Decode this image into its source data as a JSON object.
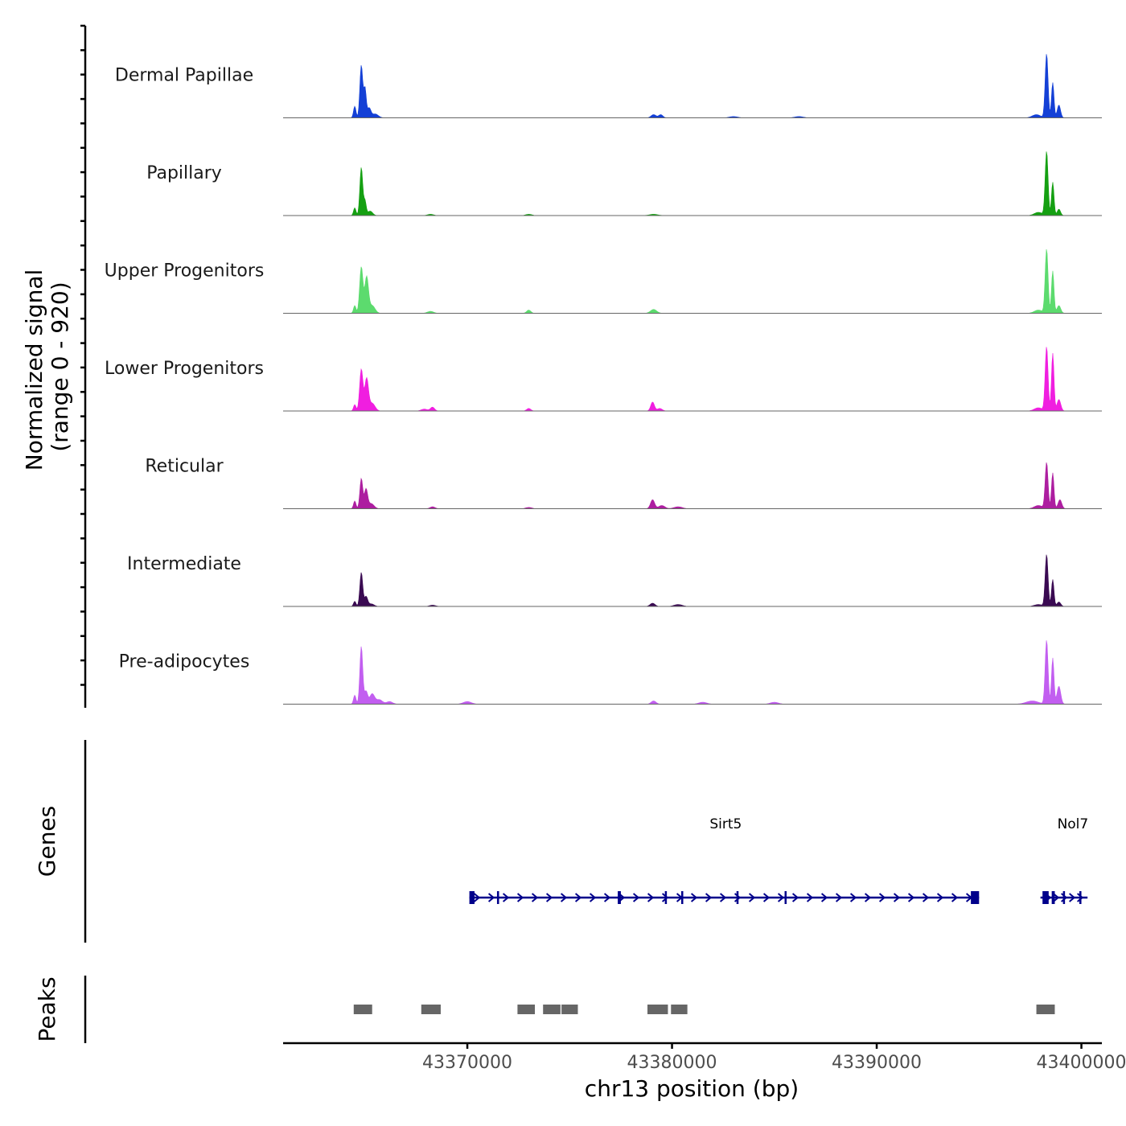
{
  "chart_data": {
    "type": "area",
    "title": "",
    "chromosome": "chr13",
    "xlabel": "chr13 position (bp)",
    "ylabel": [
      "Normalized signal",
      "(range 0 - 920)"
    ],
    "signal_range": [
      0,
      920
    ],
    "xlim": [
      43361000,
      43401000
    ],
    "x_ticks": [
      43370000,
      43380000,
      43390000,
      43400000
    ],
    "x_tick_labels": [
      "43370000",
      "43380000",
      "43390000",
      "43400000"
    ],
    "tracks": [
      {
        "name": "Dermal Papillae",
        "color": "#1440d6",
        "peaks": [
          {
            "pos": 43364500,
            "height": 0.18,
            "width": 60
          },
          {
            "pos": 43364820,
            "height": 0.82,
            "width": 70
          },
          {
            "pos": 43365000,
            "height": 0.45,
            "width": 60
          },
          {
            "pos": 43365200,
            "height": 0.15,
            "width": 90
          },
          {
            "pos": 43365500,
            "height": 0.06,
            "width": 150
          },
          {
            "pos": 43379100,
            "height": 0.05,
            "width": 120
          },
          {
            "pos": 43379450,
            "height": 0.05,
            "width": 100
          },
          {
            "pos": 43383000,
            "height": 0.02,
            "width": 200
          },
          {
            "pos": 43386200,
            "height": 0.02,
            "width": 200
          },
          {
            "pos": 43398300,
            "height": 1.0,
            "width": 70
          },
          {
            "pos": 43398600,
            "height": 0.55,
            "width": 60
          },
          {
            "pos": 43398900,
            "height": 0.2,
            "width": 80
          },
          {
            "pos": 43397800,
            "height": 0.05,
            "width": 200
          }
        ]
      },
      {
        "name": "Papillary",
        "color": "#15a012",
        "peaks": [
          {
            "pos": 43364500,
            "height": 0.12,
            "width": 60
          },
          {
            "pos": 43364820,
            "height": 0.75,
            "width": 70
          },
          {
            "pos": 43365000,
            "height": 0.22,
            "width": 60
          },
          {
            "pos": 43365250,
            "height": 0.07,
            "width": 120
          },
          {
            "pos": 43368200,
            "height": 0.02,
            "width": 150
          },
          {
            "pos": 43373000,
            "height": 0.02,
            "width": 150
          },
          {
            "pos": 43379100,
            "height": 0.02,
            "width": 200
          },
          {
            "pos": 43398300,
            "height": 1.0,
            "width": 70
          },
          {
            "pos": 43398600,
            "height": 0.52,
            "width": 60
          },
          {
            "pos": 43398900,
            "height": 0.1,
            "width": 80
          },
          {
            "pos": 43397900,
            "height": 0.05,
            "width": 200
          }
        ]
      },
      {
        "name": "Upper Progenitors",
        "color": "#5cdb6e",
        "peaks": [
          {
            "pos": 43364500,
            "height": 0.12,
            "width": 60
          },
          {
            "pos": 43364820,
            "height": 0.72,
            "width": 80
          },
          {
            "pos": 43365080,
            "height": 0.56,
            "width": 90
          },
          {
            "pos": 43365350,
            "height": 0.12,
            "width": 140
          },
          {
            "pos": 43368200,
            "height": 0.03,
            "width": 150
          },
          {
            "pos": 43373000,
            "height": 0.05,
            "width": 100
          },
          {
            "pos": 43379100,
            "height": 0.06,
            "width": 150
          },
          {
            "pos": 43398300,
            "height": 1.0,
            "width": 70
          },
          {
            "pos": 43398600,
            "height": 0.66,
            "width": 60
          },
          {
            "pos": 43398900,
            "height": 0.12,
            "width": 90
          },
          {
            "pos": 43397900,
            "height": 0.05,
            "width": 200
          }
        ]
      },
      {
        "name": "Lower Progenitors",
        "color": "#f01ee0",
        "peaks": [
          {
            "pos": 43364500,
            "height": 0.1,
            "width": 60
          },
          {
            "pos": 43364820,
            "height": 0.65,
            "width": 80
          },
          {
            "pos": 43365080,
            "height": 0.5,
            "width": 90
          },
          {
            "pos": 43365350,
            "height": 0.12,
            "width": 140
          },
          {
            "pos": 43367900,
            "height": 0.03,
            "width": 150
          },
          {
            "pos": 43368300,
            "height": 0.06,
            "width": 100
          },
          {
            "pos": 43373000,
            "height": 0.04,
            "width": 100
          },
          {
            "pos": 43379050,
            "height": 0.14,
            "width": 90
          },
          {
            "pos": 43379400,
            "height": 0.04,
            "width": 120
          },
          {
            "pos": 43398300,
            "height": 1.0,
            "width": 70
          },
          {
            "pos": 43398600,
            "height": 0.9,
            "width": 60
          },
          {
            "pos": 43398900,
            "height": 0.18,
            "width": 90
          },
          {
            "pos": 43397900,
            "height": 0.05,
            "width": 200
          }
        ]
      },
      {
        "name": "Reticular",
        "color": "#ad1ea0",
        "peaks": [
          {
            "pos": 43364500,
            "height": 0.12,
            "width": 60
          },
          {
            "pos": 43364820,
            "height": 0.47,
            "width": 70
          },
          {
            "pos": 43365050,
            "height": 0.3,
            "width": 80
          },
          {
            "pos": 43365300,
            "height": 0.08,
            "width": 140
          },
          {
            "pos": 43368300,
            "height": 0.03,
            "width": 120
          },
          {
            "pos": 43373000,
            "height": 0.02,
            "width": 150
          },
          {
            "pos": 43379050,
            "height": 0.14,
            "width": 100
          },
          {
            "pos": 43379500,
            "height": 0.05,
            "width": 150
          },
          {
            "pos": 43380300,
            "height": 0.03,
            "width": 200
          },
          {
            "pos": 43398300,
            "height": 0.72,
            "width": 70
          },
          {
            "pos": 43398600,
            "height": 0.56,
            "width": 60
          },
          {
            "pos": 43398950,
            "height": 0.14,
            "width": 90
          },
          {
            "pos": 43397900,
            "height": 0.05,
            "width": 200
          }
        ]
      },
      {
        "name": "Intermediate",
        "color": "#3a0a52",
        "peaks": [
          {
            "pos": 43364500,
            "height": 0.08,
            "width": 60
          },
          {
            "pos": 43364820,
            "height": 0.53,
            "width": 70
          },
          {
            "pos": 43365050,
            "height": 0.15,
            "width": 80
          },
          {
            "pos": 43365300,
            "height": 0.04,
            "width": 140
          },
          {
            "pos": 43368300,
            "height": 0.02,
            "width": 150
          },
          {
            "pos": 43379050,
            "height": 0.05,
            "width": 120
          },
          {
            "pos": 43380300,
            "height": 0.03,
            "width": 200
          },
          {
            "pos": 43398300,
            "height": 0.81,
            "width": 70
          },
          {
            "pos": 43398600,
            "height": 0.42,
            "width": 60
          },
          {
            "pos": 43398900,
            "height": 0.07,
            "width": 90
          },
          {
            "pos": 43397900,
            "height": 0.03,
            "width": 200
          }
        ]
      },
      {
        "name": "Pre-adipocytes",
        "color": "#c25ef0",
        "peaks": [
          {
            "pos": 43364500,
            "height": 0.14,
            "width": 60
          },
          {
            "pos": 43364820,
            "height": 0.9,
            "width": 70
          },
          {
            "pos": 43365050,
            "height": 0.2,
            "width": 80
          },
          {
            "pos": 43365350,
            "height": 0.16,
            "width": 120
          },
          {
            "pos": 43365700,
            "height": 0.07,
            "width": 150
          },
          {
            "pos": 43366200,
            "height": 0.04,
            "width": 150
          },
          {
            "pos": 43370000,
            "height": 0.04,
            "width": 200
          },
          {
            "pos": 43379100,
            "height": 0.05,
            "width": 120
          },
          {
            "pos": 43381500,
            "height": 0.03,
            "width": 200
          },
          {
            "pos": 43385000,
            "height": 0.03,
            "width": 200
          },
          {
            "pos": 43398300,
            "height": 1.0,
            "width": 70
          },
          {
            "pos": 43398600,
            "height": 0.72,
            "width": 60
          },
          {
            "pos": 43398900,
            "height": 0.28,
            "width": 90
          },
          {
            "pos": 43397600,
            "height": 0.05,
            "width": 300
          }
        ]
      }
    ],
    "genes_track": {
      "label": "Genes",
      "color": "#00008b",
      "genes": [
        {
          "name": "Sirt5",
          "start": 43370100,
          "end": 43395000,
          "strand": "+",
          "exons": [
            [
              43370100,
              43370350
            ],
            [
              43371450,
              43371550
            ],
            [
              43377350,
              43377500
            ],
            [
              43379650,
              43379720
            ],
            [
              43380450,
              43380500
            ],
            [
              43383150,
              43383250
            ],
            [
              43385500,
              43385560
            ],
            [
              43394600,
              43395000
            ]
          ]
        },
        {
          "name": "Nol7",
          "start": 43398000,
          "end": 43400300,
          "strand": "+",
          "exons": [
            [
              43398100,
              43398400
            ],
            [
              43398550,
              43398700
            ],
            [
              43399100,
              43399150
            ],
            [
              43399900,
              43400000
            ]
          ]
        }
      ]
    },
    "peaks_track": {
      "label": "Peaks",
      "color": "#666666",
      "regions": [
        [
          43364450,
          43365350
        ],
        [
          43367750,
          43368700
        ],
        [
          43372450,
          43373300
        ],
        [
          43373700,
          43374550
        ],
        [
          43374600,
          43375400
        ],
        [
          43378800,
          43379800
        ],
        [
          43379950,
          43380750
        ],
        [
          43397800,
          43398700
        ]
      ]
    }
  }
}
